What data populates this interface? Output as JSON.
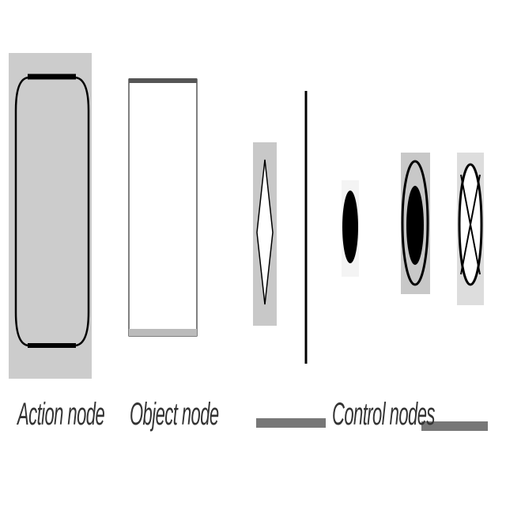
{
  "captions": {
    "action_node": "Action node",
    "object_node": "Object node",
    "control_nodes": "Control nodes"
  },
  "nodes": [
    {
      "kind": "action",
      "icon": "action-node-icon"
    },
    {
      "kind": "object",
      "icon": "object-node-icon"
    },
    {
      "kind": "decision",
      "icon": "decision-node-icon"
    },
    {
      "kind": "fork-join",
      "icon": "fork-join-bar-icon"
    },
    {
      "kind": "initial",
      "icon": "initial-node-icon"
    },
    {
      "kind": "final",
      "icon": "activity-final-node-icon"
    },
    {
      "kind": "flow-final",
      "icon": "flow-final-node-icon"
    }
  ],
  "colors": {
    "node_fill_gray": "#cccccc",
    "stroke": "#000000",
    "object_top_bar": "#555555",
    "object_bottom_bar": "#bbbbbb",
    "caption_rule": "#777777",
    "caption_text": "#333333"
  }
}
